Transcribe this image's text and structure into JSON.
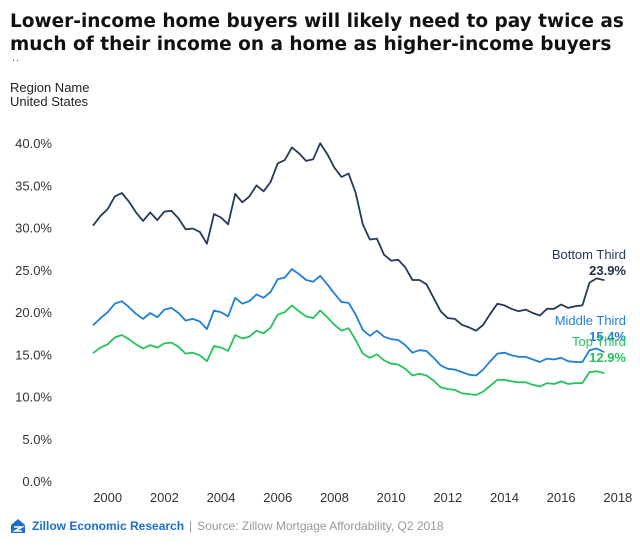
{
  "header": {
    "title": "Lower-income home buyers will likely need to pay twice as much of their income on a home as higher-income buyers",
    "dots": ".."
  },
  "filter": {
    "label": "Region Name",
    "value": "United States"
  },
  "footer": {
    "brand": "Zillow Economic Research",
    "separator": "|",
    "source": "Source: Zillow Mortgage Affordability, Q2 2018",
    "brand_color": "#1a6fc9"
  },
  "chart_data": {
    "type": "line",
    "title": "Lower-income home buyers will likely need to pay twice as much of their income on a home as higher-income buyers",
    "xlabel": "",
    "ylabel": "",
    "xlim": [
      1998.6,
      2018.5
    ],
    "ylim": [
      0,
      40
    ],
    "yticks": [
      "0.0%",
      "5.0%",
      "10.0%",
      "15.0%",
      "20.0%",
      "25.0%",
      "30.0%",
      "35.0%",
      "40.0%"
    ],
    "ytick_values": [
      0,
      5,
      10,
      15,
      20,
      25,
      30,
      35,
      40
    ],
    "xticks": [
      "2000",
      "2002",
      "2004",
      "2006",
      "2008",
      "2010",
      "2012",
      "2014",
      "2016",
      "2018"
    ],
    "xtick_values": [
      2000,
      2002,
      2004,
      2006,
      2008,
      2010,
      2012,
      2014,
      2016,
      2018
    ],
    "grid": false,
    "x": [
      1999.5,
      1999.75,
      2000,
      2000.25,
      2000.5,
      2000.75,
      2001,
      2001.25,
      2001.5,
      2001.75,
      2002,
      2002.25,
      2002.5,
      2002.75,
      2003,
      2003.25,
      2003.5,
      2003.75,
      2004,
      2004.25,
      2004.5,
      2004.75,
      2005,
      2005.25,
      2005.5,
      2005.75,
      2006,
      2006.25,
      2006.5,
      2006.75,
      2007,
      2007.25,
      2007.5,
      2007.75,
      2008,
      2008.25,
      2008.5,
      2008.75,
      2009,
      2009.25,
      2009.5,
      2009.75,
      2010,
      2010.25,
      2010.5,
      2010.75,
      2011,
      2011.25,
      2011.5,
      2011.75,
      2012,
      2012.25,
      2012.5,
      2012.75,
      2013,
      2013.25,
      2013.5,
      2013.75,
      2014,
      2014.25,
      2014.5,
      2014.75,
      2015,
      2015.25,
      2015.5,
      2015.75,
      2016,
      2016.25,
      2016.5,
      2016.75,
      2017,
      2017.25,
      2017.5,
      2017.75
    ],
    "series": [
      {
        "name": "Bottom Third",
        "end_label": "23.9%",
        "color": "#26395a",
        "values": [
          30.4,
          31.5,
          32.3,
          33.8,
          34.2,
          33.2,
          31.9,
          30.9,
          31.9,
          31.0,
          32.0,
          32.1,
          31.2,
          29.9,
          30.0,
          29.6,
          28.2,
          31.7,
          31.3,
          30.5,
          34.1,
          33.1,
          33.8,
          35.1,
          34.4,
          35.5,
          37.7,
          38.1,
          39.6,
          38.9,
          38.0,
          38.2,
          40.1,
          38.8,
          37.2,
          36.1,
          36.5,
          34.2,
          30.5,
          28.7,
          28.8,
          26.9,
          26.2,
          26.3,
          25.4,
          23.9,
          23.9,
          23.4,
          21.8,
          20.2,
          19.4,
          19.3,
          18.6,
          18.3,
          17.9,
          18.6,
          19.9,
          21.1,
          20.9,
          20.5,
          20.2,
          20.4,
          20.0,
          19.7,
          20.5,
          20.5,
          21.0,
          20.6,
          20.8,
          20.9,
          23.6,
          24.1,
          23.9,
          null
        ]
      },
      {
        "name": "Middle Third",
        "end_label": "15.4%",
        "color": "#1f7fd8",
        "values": [
          18.6,
          19.4,
          20.1,
          21.1,
          21.4,
          20.7,
          19.9,
          19.3,
          20.0,
          19.5,
          20.4,
          20.6,
          20.0,
          19.1,
          19.3,
          19.0,
          18.1,
          20.3,
          20.1,
          19.6,
          21.8,
          21.1,
          21.4,
          22.2,
          21.8,
          22.5,
          24.0,
          24.2,
          25.2,
          24.6,
          23.9,
          23.7,
          24.4,
          23.4,
          22.3,
          21.3,
          21.2,
          19.8,
          18.0,
          17.3,
          17.9,
          17.2,
          16.9,
          16.8,
          16.2,
          15.3,
          15.6,
          15.5,
          14.7,
          13.8,
          13.4,
          13.3,
          13.0,
          12.7,
          12.6,
          13.3,
          14.3,
          15.2,
          15.3,
          15.0,
          14.8,
          14.8,
          14.5,
          14.2,
          14.6,
          14.5,
          14.7,
          14.3,
          14.2,
          14.2,
          15.6,
          15.8,
          15.4,
          null
        ]
      },
      {
        "name": "Top Third",
        "end_label": "12.9%",
        "color": "#25c35a",
        "values": [
          15.3,
          15.9,
          16.3,
          17.1,
          17.4,
          16.9,
          16.3,
          15.8,
          16.2,
          15.9,
          16.4,
          16.5,
          16.0,
          15.2,
          15.3,
          15.0,
          14.3,
          16.1,
          15.9,
          15.5,
          17.4,
          17.0,
          17.2,
          17.9,
          17.6,
          18.3,
          19.8,
          20.1,
          20.9,
          20.2,
          19.6,
          19.4,
          20.3,
          19.5,
          18.6,
          17.9,
          18.2,
          16.8,
          15.2,
          14.7,
          15.1,
          14.4,
          14.0,
          13.9,
          13.4,
          12.6,
          12.8,
          12.6,
          12.0,
          11.2,
          11.0,
          10.9,
          10.5,
          10.4,
          10.3,
          10.7,
          11.4,
          12.1,
          12.1,
          11.9,
          11.8,
          11.8,
          11.5,
          11.3,
          11.7,
          11.6,
          11.9,
          11.6,
          11.7,
          11.7,
          13.0,
          13.1,
          12.9,
          null
        ]
      }
    ]
  }
}
